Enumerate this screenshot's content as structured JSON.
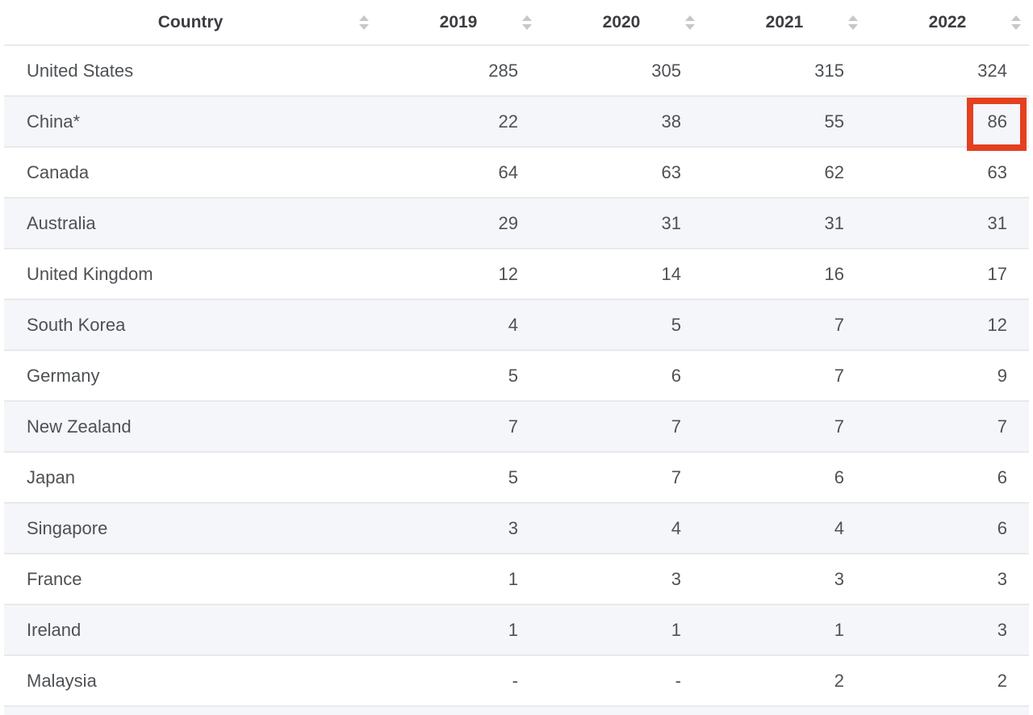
{
  "table": {
    "columns": [
      {
        "key": "country",
        "label": "Country"
      },
      {
        "key": "2019",
        "label": "2019"
      },
      {
        "key": "2020",
        "label": "2020"
      },
      {
        "key": "2021",
        "label": "2021"
      },
      {
        "key": "2022",
        "label": "2022"
      }
    ],
    "rows": [
      {
        "country": "United States",
        "values": [
          "285",
          "305",
          "315",
          "324"
        ]
      },
      {
        "country": "China*",
        "values": [
          "22",
          "38",
          "55",
          "86"
        ]
      },
      {
        "country": "Canada",
        "values": [
          "64",
          "63",
          "62",
          "63"
        ]
      },
      {
        "country": "Australia",
        "values": [
          "29",
          "31",
          "31",
          "31"
        ]
      },
      {
        "country": "United Kingdom",
        "values": [
          "12",
          "14",
          "16",
          "17"
        ]
      },
      {
        "country": "South Korea",
        "values": [
          "4",
          "5",
          "7",
          "12"
        ]
      },
      {
        "country": "Germany",
        "values": [
          "5",
          "6",
          "7",
          "9"
        ]
      },
      {
        "country": "New Zealand",
        "values": [
          "7",
          "7",
          "7",
          "7"
        ]
      },
      {
        "country": "Japan",
        "values": [
          "5",
          "7",
          "6",
          "6"
        ]
      },
      {
        "country": "Singapore",
        "values": [
          "3",
          "4",
          "4",
          "6"
        ]
      },
      {
        "country": "France",
        "values": [
          "1",
          "3",
          "3",
          "3"
        ]
      },
      {
        "country": "Ireland",
        "values": [
          "1",
          "1",
          "1",
          "3"
        ]
      },
      {
        "country": "Malaysia",
        "values": [
          "-",
          "-",
          "2",
          "2"
        ]
      }
    ],
    "highlight": {
      "row_index": 1,
      "col_index": 3,
      "country": "China*",
      "year": "2022",
      "value": "86"
    }
  },
  "icons": {
    "sort": "sort-arrows-icon"
  },
  "colors": {
    "highlight_border": "#e5401f",
    "stripe_background": "#f4f6f9",
    "row_border": "#e7e9eb",
    "header_text": "#3b3d40",
    "body_text": "#4e5154",
    "sort_icon": "#c5c7c9"
  },
  "chart_data": {
    "type": "table",
    "title": "",
    "columns": [
      "Country",
      "2019",
      "2020",
      "2021",
      "2022"
    ],
    "rows": [
      [
        "United States",
        285,
        305,
        315,
        324
      ],
      [
        "China*",
        22,
        38,
        55,
        86
      ],
      [
        "Canada",
        64,
        63,
        62,
        63
      ],
      [
        "Australia",
        29,
        31,
        31,
        31
      ],
      [
        "United Kingdom",
        12,
        14,
        16,
        17
      ],
      [
        "South Korea",
        4,
        5,
        7,
        12
      ],
      [
        "Germany",
        5,
        6,
        7,
        9
      ],
      [
        "New Zealand",
        7,
        7,
        7,
        7
      ],
      [
        "Japan",
        5,
        7,
        6,
        6
      ],
      [
        "Singapore",
        3,
        4,
        4,
        6
      ],
      [
        "France",
        1,
        3,
        3,
        3
      ],
      [
        "Ireland",
        1,
        1,
        1,
        3
      ],
      [
        "Malaysia",
        "-",
        "-",
        2,
        2
      ]
    ],
    "annotations": [
      {
        "type": "highlight-box",
        "cell": [
          "China*",
          "2022"
        ],
        "value": 86,
        "color": "#e5401f"
      }
    ],
    "layout": {
      "striped_rows": true,
      "sortable_columns": true,
      "values_align": "right"
    }
  }
}
